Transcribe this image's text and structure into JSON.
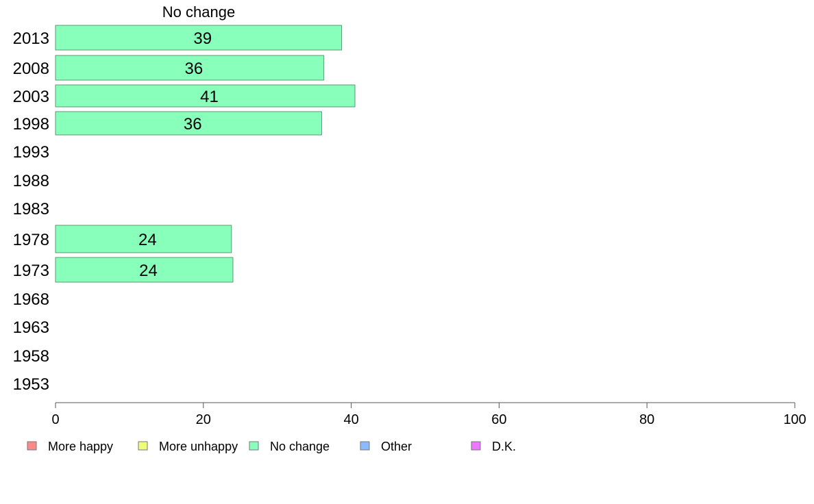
{
  "chart_data": {
    "type": "bar",
    "orientation": "horizontal",
    "panel_title": "No change",
    "categories": [
      "2013",
      "2008",
      "2003",
      "1998",
      "1993",
      "1988",
      "1983",
      "1978",
      "1973",
      "1968",
      "1963",
      "1958",
      "1953"
    ],
    "series": [
      {
        "name": "No change",
        "color": "#88ffbb",
        "values": [
          39,
          36,
          41,
          36,
          null,
          null,
          null,
          24,
          24,
          null,
          null,
          null,
          null
        ],
        "bar_values": [
          38.7,
          36.3,
          40.5,
          36.0,
          null,
          null,
          null,
          23.8,
          24.0,
          null,
          null,
          null,
          null
        ]
      }
    ],
    "xlim": [
      0,
      100
    ],
    "xticks": [
      0,
      20,
      40,
      60,
      80,
      100
    ],
    "grid": false,
    "legend": {
      "placement": "bottom",
      "entries": [
        {
          "label": "More happy",
          "color": "#ff8888"
        },
        {
          "label": "More unhappy",
          "color": "#eeff77"
        },
        {
          "label": "No change",
          "color": "#88ffbb"
        },
        {
          "label": "Other",
          "color": "#88bbff"
        },
        {
          "label": "D.K.",
          "color": "#ee77ff"
        }
      ]
    }
  }
}
